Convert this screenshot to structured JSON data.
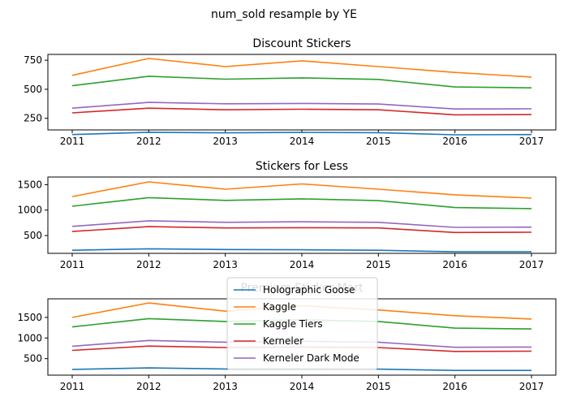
{
  "suptitle": "num_sold resample by YE",
  "chart_data": [
    {
      "type": "line",
      "title": "Discount Stickers",
      "x": [
        "2011",
        "2012",
        "2013",
        "2014",
        "2015",
        "2016",
        "2017"
      ],
      "ylim": [
        150,
        800
      ],
      "yticks": [
        "250",
        "500",
        "750"
      ],
      "grid": false,
      "series": [
        {
          "name": "Holographic Goose",
          "color": "#1f77b4",
          "values": [
            110,
            130,
            125,
            128,
            126,
            108,
            110
          ]
        },
        {
          "name": "Kaggle",
          "color": "#ff7f0e",
          "values": [
            620,
            765,
            695,
            745,
            695,
            645,
            605
          ]
        },
        {
          "name": "Kaggle Tiers",
          "color": "#2ca02c",
          "values": [
            530,
            612,
            587,
            598,
            585,
            520,
            512
          ]
        },
        {
          "name": "Kerneler",
          "color": "#d62728",
          "values": [
            297,
            337,
            323,
            328,
            323,
            280,
            282
          ]
        },
        {
          "name": "Kerneler Dark Mode",
          "color": "#9467bd",
          "values": [
            337,
            387,
            375,
            378,
            373,
            330,
            332
          ]
        }
      ]
    },
    {
      "type": "line",
      "title": "Stickers for Less",
      "x": [
        "2011",
        "2012",
        "2013",
        "2014",
        "2015",
        "2016",
        "2017"
      ],
      "ylim": [
        150,
        1650
      ],
      "yticks": [
        "500",
        "1000",
        "1500"
      ],
      "grid": false,
      "series": [
        {
          "name": "Holographic Goose",
          "color": "#1f77b4",
          "values": [
            210,
            240,
            225,
            220,
            210,
            180,
            180
          ]
        },
        {
          "name": "Kaggle",
          "color": "#ff7f0e",
          "values": [
            1265,
            1555,
            1410,
            1515,
            1410,
            1300,
            1235
          ]
        },
        {
          "name": "Kaggle Tiers",
          "color": "#2ca02c",
          "values": [
            1075,
            1245,
            1190,
            1220,
            1185,
            1050,
            1030
          ]
        },
        {
          "name": "Kerneler",
          "color": "#d62728",
          "values": [
            580,
            675,
            650,
            655,
            650,
            560,
            565
          ]
        },
        {
          "name": "Kerneler Dark Mode",
          "color": "#9467bd",
          "values": [
            680,
            790,
            760,
            770,
            760,
            660,
            665
          ]
        }
      ]
    },
    {
      "type": "line",
      "title": "Premium Sticker Mart",
      "x": [
        "2011",
        "2012",
        "2013",
        "2014",
        "2015",
        "2016",
        "2017"
      ],
      "ylim": [
        100,
        1950
      ],
      "yticks": [
        "500",
        "1000",
        "1500"
      ],
      "grid": false,
      "series": [
        {
          "name": "Holographic Goose",
          "color": "#1f77b4",
          "values": [
            240,
            275,
            250,
            250,
            245,
            215,
            215
          ]
        },
        {
          "name": "Kaggle",
          "color": "#ff7f0e",
          "values": [
            1500,
            1850,
            1650,
            1780,
            1680,
            1540,
            1460
          ]
        },
        {
          "name": "Kaggle Tiers",
          "color": "#2ca02c",
          "values": [
            1270,
            1470,
            1400,
            1440,
            1400,
            1240,
            1220
          ]
        },
        {
          "name": "Kerneler",
          "color": "#d62728",
          "values": [
            700,
            805,
            770,
            780,
            770,
            675,
            680
          ]
        },
        {
          "name": "Kerneler Dark Mode",
          "color": "#9467bd",
          "values": [
            800,
            940,
            900,
            920,
            900,
            775,
            780
          ]
        }
      ]
    }
  ],
  "legend": {
    "entries": [
      "Holographic Goose",
      "Kaggle",
      "Kaggle Tiers",
      "Kerneler",
      "Kerneler Dark Mode"
    ],
    "placement": "bottom-subplot-center"
  }
}
